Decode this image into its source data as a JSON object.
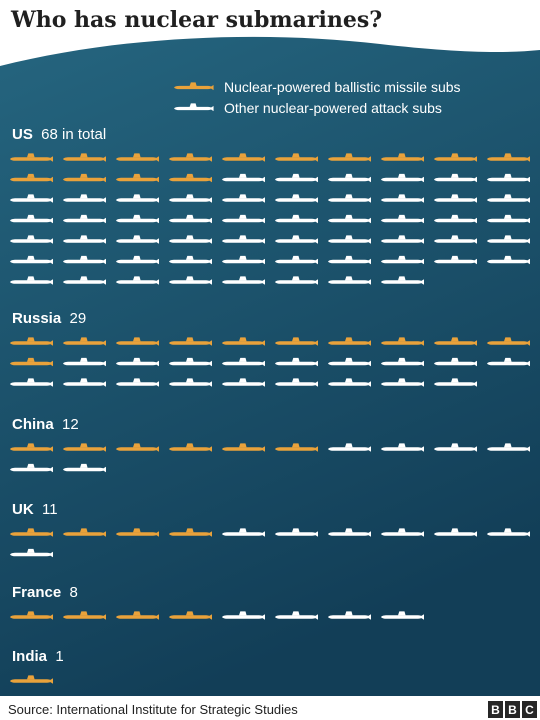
{
  "title": "Who has nuclear submarines?",
  "chart_data": {
    "type": "pictogram",
    "legend": [
      {
        "key": "ballistic",
        "label": "Nuclear-powered ballistic missile subs",
        "color": "#e9a23b"
      },
      {
        "key": "attack",
        "label": "Other nuclear-powered attack subs",
        "color": "#ffffff"
      }
    ],
    "countries": [
      {
        "name": "US",
        "total": "68",
        "suffix": "in total",
        "ballistic": 14,
        "attack": 54
      },
      {
        "name": "Russia",
        "total": "29",
        "suffix": "",
        "ballistic": 11,
        "attack": 18
      },
      {
        "name": "China",
        "total": "12",
        "suffix": "",
        "ballistic": 6,
        "attack": 6
      },
      {
        "name": "UK",
        "total": "11",
        "suffix": "",
        "ballistic": 4,
        "attack": 7
      },
      {
        "name": "France",
        "total": "8",
        "suffix": "",
        "ballistic": 4,
        "attack": 4
      },
      {
        "name": "India",
        "total": "1",
        "suffix": "",
        "ballistic": 1,
        "attack": 0
      }
    ]
  },
  "footer": {
    "source": "Source: International Institute for Strategic Studies",
    "logo_letters": [
      "B",
      "B",
      "C"
    ]
  },
  "colors": {
    "panel_top": "#25657f",
    "panel_bottom": "#123e57",
    "ballistic": "#e9a23b",
    "attack": "#ffffff"
  }
}
